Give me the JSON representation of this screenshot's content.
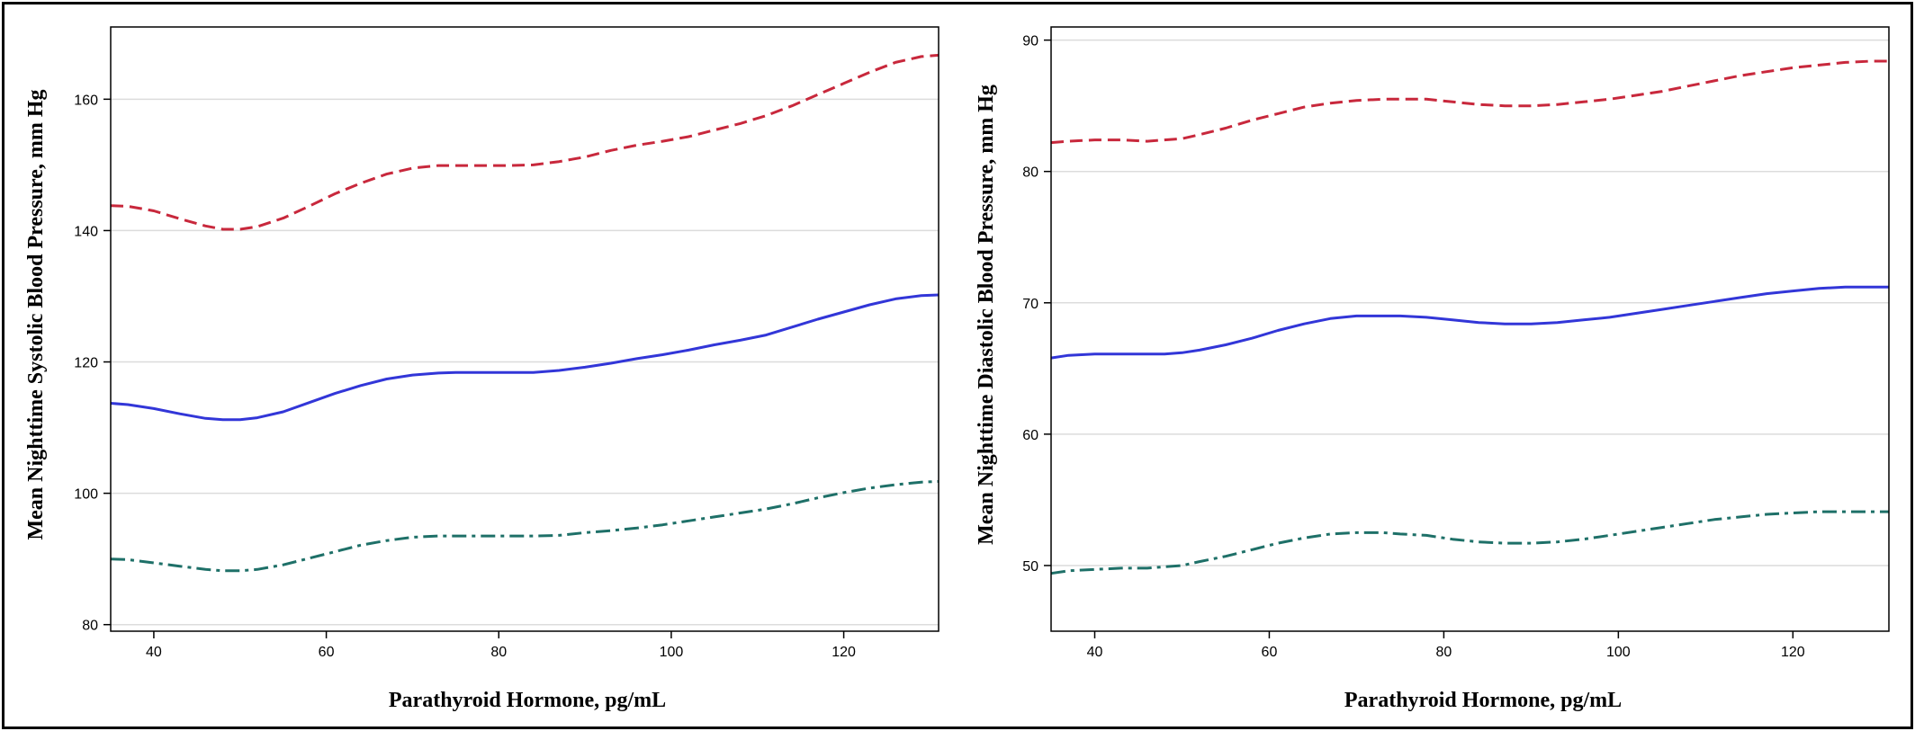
{
  "chart_data": [
    {
      "type": "line",
      "title": "",
      "xlabel": "Parathyroid Hormone, pg/mL",
      "ylabel": "Mean Nighttime Systolic Blood Pressure, mm Hg",
      "xlim": [
        35,
        131
      ],
      "ylim": [
        79,
        171
      ],
      "xticks": [
        40,
        60,
        80,
        100,
        120
      ],
      "yticks": [
        80,
        100,
        120,
        140,
        160
      ],
      "grid": "horizontal",
      "series": [
        {
          "style": "dashed",
          "color": "#c8283c",
          "x": [
            35,
            37,
            40,
            43,
            46,
            48,
            50,
            52,
            55,
            58,
            61,
            64,
            67,
            70,
            73,
            75,
            78,
            81,
            84,
            87,
            90,
            93,
            96,
            99,
            102,
            105,
            108,
            111,
            114,
            117,
            120,
            123,
            126,
            129,
            131
          ],
          "y": [
            143.8,
            143.7,
            143.0,
            141.8,
            140.7,
            140.2,
            140.2,
            140.6,
            141.9,
            143.7,
            145.6,
            147.2,
            148.6,
            149.5,
            149.9,
            149.9,
            149.9,
            149.9,
            150.0,
            150.5,
            151.2,
            152.2,
            153.0,
            153.6,
            154.3,
            155.3,
            156.3,
            157.5,
            159.0,
            160.7,
            162.4,
            164.1,
            165.6,
            166.5,
            166.7
          ]
        },
        {
          "style": "solid",
          "color": "#3236d8",
          "x": [
            35,
            37,
            40,
            43,
            46,
            48,
            50,
            52,
            55,
            58,
            61,
            64,
            67,
            70,
            73,
            75,
            78,
            81,
            84,
            87,
            90,
            93,
            96,
            99,
            102,
            105,
            108,
            111,
            114,
            117,
            120,
            123,
            126,
            129,
            131
          ],
          "y": [
            113.7,
            113.5,
            112.9,
            112.1,
            111.4,
            111.2,
            111.2,
            111.5,
            112.4,
            113.8,
            115.2,
            116.4,
            117.4,
            118.0,
            118.3,
            118.4,
            118.4,
            118.4,
            118.4,
            118.7,
            119.2,
            119.8,
            120.5,
            121.1,
            121.8,
            122.6,
            123.3,
            124.1,
            125.3,
            126.5,
            127.6,
            128.7,
            129.6,
            130.1,
            130.2
          ]
        },
        {
          "style": "dash-dot",
          "color": "#1e7068",
          "x": [
            35,
            37,
            40,
            43,
            46,
            48,
            50,
            52,
            55,
            58,
            61,
            64,
            67,
            70,
            73,
            75,
            78,
            81,
            84,
            87,
            90,
            93,
            96,
            99,
            102,
            105,
            108,
            111,
            114,
            117,
            120,
            123,
            126,
            129,
            131
          ],
          "y": [
            90.0,
            89.9,
            89.4,
            88.9,
            88.4,
            88.2,
            88.2,
            88.4,
            89.1,
            90.1,
            91.1,
            92.1,
            92.8,
            93.3,
            93.5,
            93.5,
            93.5,
            93.5,
            93.5,
            93.6,
            94.0,
            94.3,
            94.7,
            95.2,
            95.8,
            96.4,
            97.0,
            97.6,
            98.4,
            99.3,
            100.1,
            100.8,
            101.3,
            101.7,
            101.8
          ]
        }
      ]
    },
    {
      "type": "line",
      "title": "",
      "xlabel": "Parathyroid Hormone, pg/mL",
      "ylabel": "Mean Nighttime Diastolic Blood Pressure, mm Hg",
      "xlim": [
        35,
        131
      ],
      "ylim": [
        45,
        91
      ],
      "xticks": [
        40,
        60,
        80,
        100,
        120
      ],
      "yticks": [
        50,
        60,
        70,
        80,
        90
      ],
      "grid": "horizontal",
      "series": [
        {
          "style": "dashed",
          "color": "#c8283c",
          "x": [
            35,
            37,
            40,
            43,
            46,
            48,
            50,
            52,
            55,
            58,
            61,
            64,
            67,
            70,
            73,
            75,
            78,
            81,
            84,
            87,
            90,
            93,
            96,
            99,
            102,
            105,
            108,
            111,
            114,
            117,
            120,
            123,
            126,
            129,
            131
          ],
          "y": [
            82.2,
            82.3,
            82.4,
            82.4,
            82.3,
            82.4,
            82.5,
            82.8,
            83.3,
            83.9,
            84.4,
            84.9,
            85.2,
            85.4,
            85.5,
            85.5,
            85.5,
            85.3,
            85.1,
            85.0,
            85.0,
            85.1,
            85.3,
            85.5,
            85.8,
            86.1,
            86.5,
            86.9,
            87.3,
            87.6,
            87.9,
            88.1,
            88.3,
            88.4,
            88.4
          ]
        },
        {
          "style": "solid",
          "color": "#3236d8",
          "x": [
            35,
            37,
            40,
            43,
            46,
            48,
            50,
            52,
            55,
            58,
            61,
            64,
            67,
            70,
            73,
            75,
            78,
            81,
            84,
            87,
            90,
            93,
            96,
            99,
            102,
            105,
            108,
            111,
            114,
            117,
            120,
            123,
            126,
            129,
            131
          ],
          "y": [
            65.8,
            66.0,
            66.1,
            66.1,
            66.1,
            66.1,
            66.2,
            66.4,
            66.8,
            67.3,
            67.9,
            68.4,
            68.8,
            69.0,
            69.0,
            69.0,
            68.9,
            68.7,
            68.5,
            68.4,
            68.4,
            68.5,
            68.7,
            68.9,
            69.2,
            69.5,
            69.8,
            70.1,
            70.4,
            70.7,
            70.9,
            71.1,
            71.2,
            71.2,
            71.2
          ]
        },
        {
          "style": "dash-dot",
          "color": "#1e7068",
          "x": [
            35,
            37,
            40,
            43,
            46,
            48,
            50,
            52,
            55,
            58,
            61,
            64,
            67,
            70,
            73,
            75,
            78,
            81,
            84,
            87,
            90,
            93,
            96,
            99,
            102,
            105,
            108,
            111,
            114,
            117,
            120,
            123,
            126,
            129,
            131
          ],
          "y": [
            49.4,
            49.6,
            49.7,
            49.8,
            49.8,
            49.9,
            50.0,
            50.3,
            50.7,
            51.2,
            51.7,
            52.1,
            52.4,
            52.5,
            52.5,
            52.4,
            52.3,
            52.0,
            51.8,
            51.7,
            51.7,
            51.8,
            52.0,
            52.3,
            52.6,
            52.9,
            53.2,
            53.5,
            53.7,
            53.9,
            54.0,
            54.1,
            54.1,
            54.1,
            54.1
          ]
        }
      ]
    }
  ]
}
